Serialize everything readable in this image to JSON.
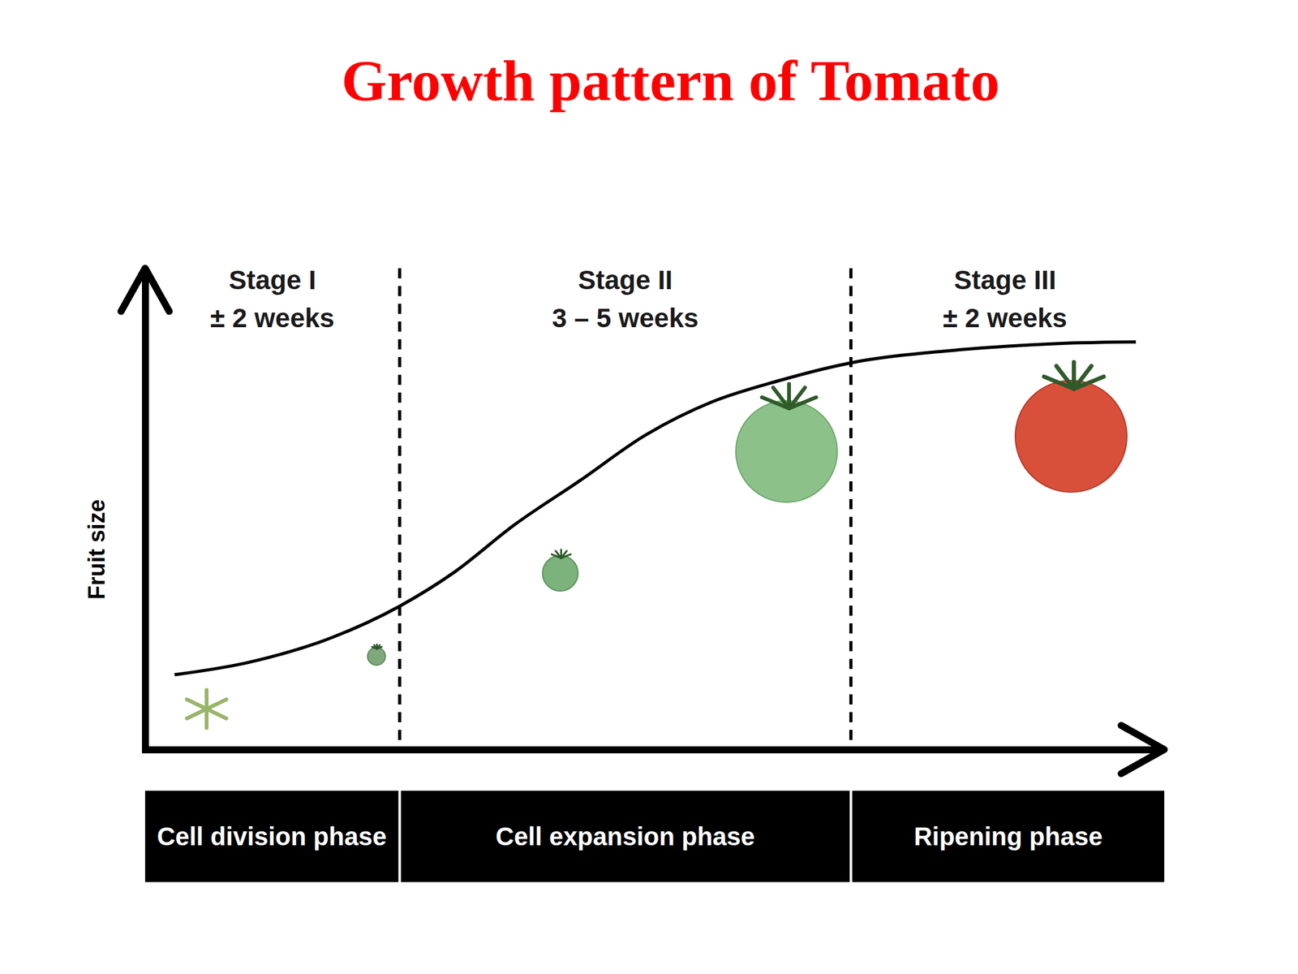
{
  "chart_data": {
    "type": "line",
    "title": "Growth pattern of Tomato",
    "y_label": "Fruit size",
    "x": [
      2.9,
      10.2,
      18.4,
      25.1,
      30.6,
      36.3,
      42.9,
      49.4,
      55.9,
      62.4,
      69.6,
      79.6,
      89.4,
      97.7
    ],
    "values": [
      15.7,
      18.3,
      23.5,
      30.1,
      37.4,
      47.0,
      56.5,
      66.1,
      73.0,
      77.4,
      81.2,
      83.8,
      85.2,
      85.6
    ],
    "color": "#000000",
    "xlim": [
      0,
      100
    ],
    "ylim": [
      0,
      100
    ],
    "tick_labels": false,
    "grid": false,
    "dividers": [
      25.1,
      69.6
    ],
    "stages": [
      {
        "label": "Stage I",
        "duration": "± 2 weeks",
        "phase": "Cell division phase"
      },
      {
        "label": "Stage II",
        "duration": "3 – 5 weeks",
        "phase": "Cell expansion phase"
      },
      {
        "label": "Stage III",
        "duration": "± 2 weeks",
        "phase": "Ripening phase"
      }
    ]
  }
}
